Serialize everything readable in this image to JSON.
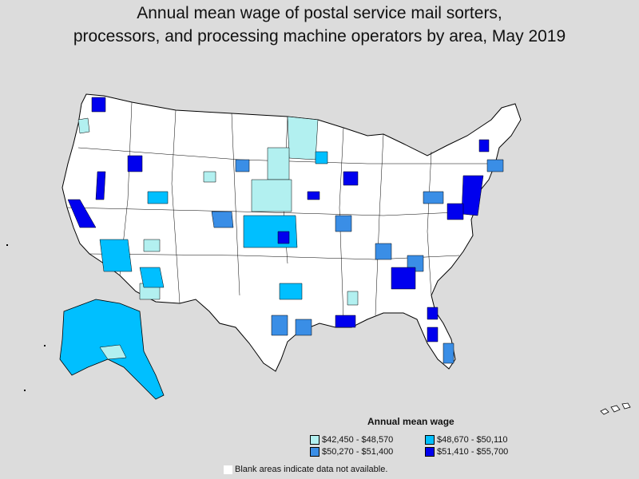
{
  "title_lines": [
    "Annual mean wage of postal service mail sorters,",
    "processors, and processing machine operators by area, May 2019"
  ],
  "legend": {
    "title": "Annual mean wage",
    "items": [
      {
        "label": "$42,450 - $48,570",
        "color": "#b2f0f0"
      },
      {
        "label": "$48,670 - $50,110",
        "color": "#00bfff"
      },
      {
        "label": "$50,270 - $51,400",
        "color": "#3a8ee6"
      },
      {
        "label": "$51,410 - $55,700",
        "color": "#0000ee"
      }
    ]
  },
  "note": "Blank areas indicate data not available."
}
